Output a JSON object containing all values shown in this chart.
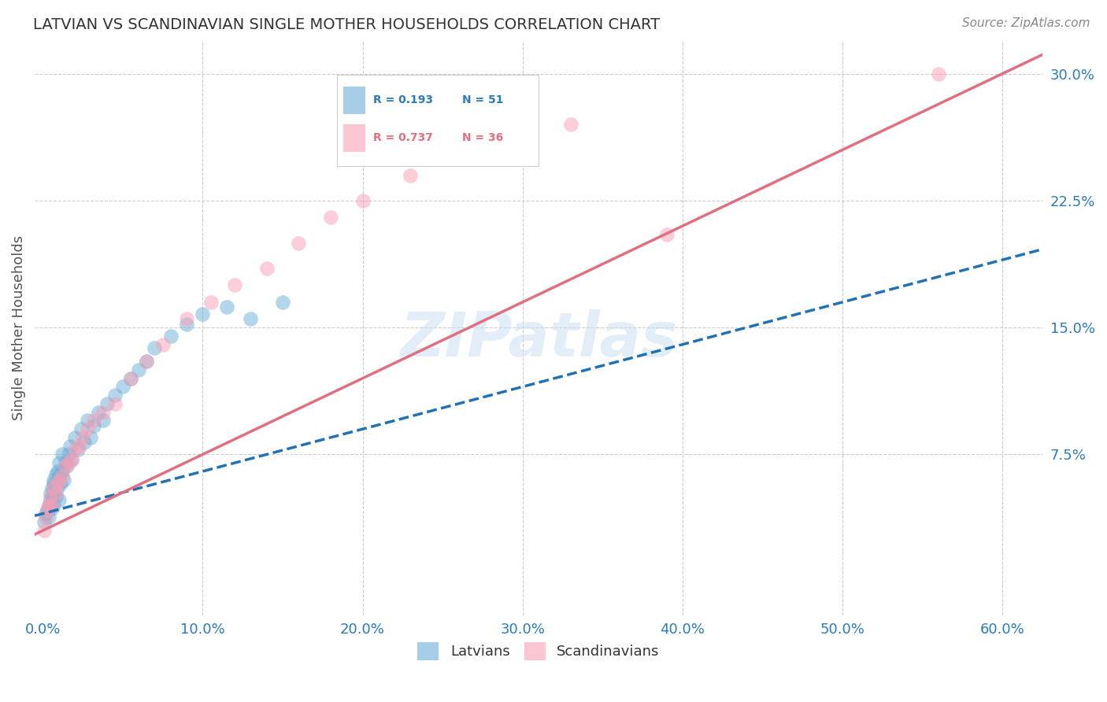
{
  "title": "LATVIAN VS SCANDINAVIAN SINGLE MOTHER HOUSEHOLDS CORRELATION CHART",
  "source": "Source: ZipAtlas.com",
  "xlabel_vals": [
    0.0,
    0.1,
    0.2,
    0.3,
    0.4,
    0.5,
    0.6
  ],
  "ylabel_ticks": [
    "7.5%",
    "15.0%",
    "22.5%",
    "30.0%"
  ],
  "ylabel_vals": [
    0.075,
    0.15,
    0.225,
    0.3
  ],
  "ylabel_label": "Single Mother Households",
  "xlim": [
    -0.005,
    0.625
  ],
  "ylim": [
    -0.02,
    0.32
  ],
  "legend_r_latvian": "R = 0.193",
  "legend_n_latvian": "N = 51",
  "legend_r_scandinavian": "R = 0.737",
  "legend_n_scandinavian": "N = 36",
  "latvian_color": "#6baed6",
  "scandinavian_color": "#fa9fb5",
  "latvian_line_color": "#2171b5",
  "scandinavian_line_color": "#e07080",
  "watermark": "ZIPatlas",
  "latvian_x": [
    0.001,
    0.002,
    0.003,
    0.004,
    0.004,
    0.005,
    0.005,
    0.006,
    0.006,
    0.006,
    0.007,
    0.007,
    0.007,
    0.008,
    0.008,
    0.009,
    0.009,
    0.01,
    0.01,
    0.01,
    0.011,
    0.012,
    0.012,
    0.013,
    0.014,
    0.015,
    0.016,
    0.017,
    0.018,
    0.02,
    0.022,
    0.024,
    0.026,
    0.028,
    0.03,
    0.032,
    0.035,
    0.038,
    0.04,
    0.045,
    0.05,
    0.055,
    0.06,
    0.065,
    0.07,
    0.08,
    0.09,
    0.1,
    0.115,
    0.13,
    0.15
  ],
  "latvian_y": [
    0.035,
    0.04,
    0.042,
    0.038,
    0.045,
    0.048,
    0.052,
    0.043,
    0.05,
    0.055,
    0.06,
    0.045,
    0.058,
    0.05,
    0.063,
    0.055,
    0.065,
    0.048,
    0.062,
    0.07,
    0.058,
    0.065,
    0.075,
    0.06,
    0.07,
    0.068,
    0.075,
    0.08,
    0.072,
    0.085,
    0.078,
    0.09,
    0.082,
    0.095,
    0.085,
    0.092,
    0.1,
    0.095,
    0.105,
    0.11,
    0.115,
    0.12,
    0.125,
    0.13,
    0.138,
    0.145,
    0.152,
    0.158,
    0.162,
    0.155,
    0.165
  ],
  "scandinavian_x": [
    0.001,
    0.002,
    0.003,
    0.004,
    0.005,
    0.006,
    0.007,
    0.008,
    0.009,
    0.01,
    0.012,
    0.014,
    0.016,
    0.018,
    0.02,
    0.023,
    0.025,
    0.028,
    0.032,
    0.038,
    0.045,
    0.055,
    0.065,
    0.075,
    0.09,
    0.105,
    0.12,
    0.14,
    0.16,
    0.18,
    0.2,
    0.23,
    0.27,
    0.33,
    0.39,
    0.56
  ],
  "scandinavian_y": [
    0.03,
    0.038,
    0.042,
    0.045,
    0.05,
    0.045,
    0.055,
    0.052,
    0.058,
    0.06,
    0.062,
    0.068,
    0.07,
    0.072,
    0.078,
    0.08,
    0.085,
    0.09,
    0.095,
    0.1,
    0.105,
    0.12,
    0.13,
    0.14,
    0.155,
    0.165,
    0.175,
    0.185,
    0.2,
    0.215,
    0.225,
    0.24,
    0.255,
    0.27,
    0.205,
    0.3
  ],
  "scand_line_x0": 0.0,
  "scand_line_y0": 0.03,
  "scand_line_x1": 0.6,
  "scand_line_y1": 0.3,
  "latv_line_x0": 0.0,
  "latv_line_y0": 0.04,
  "latv_line_x1": 0.6,
  "latv_line_y1": 0.19
}
